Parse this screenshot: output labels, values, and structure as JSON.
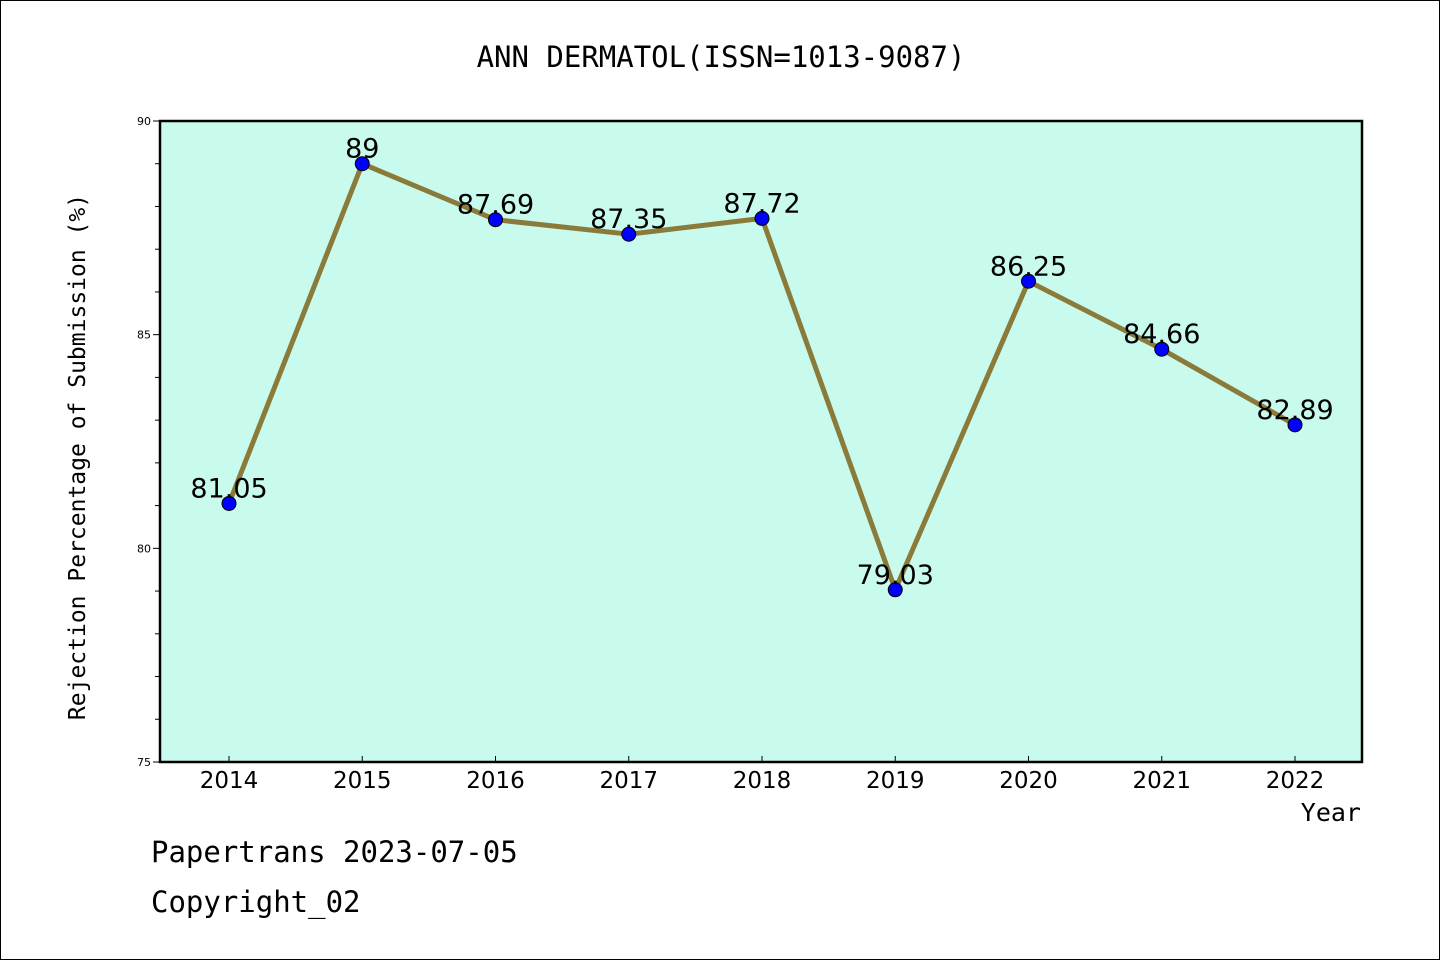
{
  "chart_data": {
    "type": "line",
    "title": "ANN DERMATOL(ISSN=1013-9087)",
    "xlabel": "Year",
    "ylabel": "Rejection Percentage of Submission (%)",
    "x": [
      "2014",
      "2015",
      "2016",
      "2017",
      "2018",
      "2019",
      "2020",
      "2021",
      "2022"
    ],
    "series": [
      {
        "values": [
          81.05,
          89,
          87.69,
          87.35,
          87.72,
          79.03,
          86.25,
          84.66,
          82.89
        ],
        "labels": [
          "81.05",
          "89",
          "87.69",
          "87.35",
          "87.72",
          "79.03",
          "86.25",
          "84.66",
          "82.89"
        ]
      }
    ],
    "ylim": [
      75,
      90
    ],
    "yticks_major": [
      "75",
      "80",
      "85",
      "90"
    ],
    "grid": false,
    "colors": {
      "plot_background": "#c8fbee",
      "line": "#8a7b3a",
      "marker": "#0000ff"
    }
  },
  "footer": {
    "line1": "Papertrans 2023-07-05",
    "line2": "Copyright_02"
  }
}
